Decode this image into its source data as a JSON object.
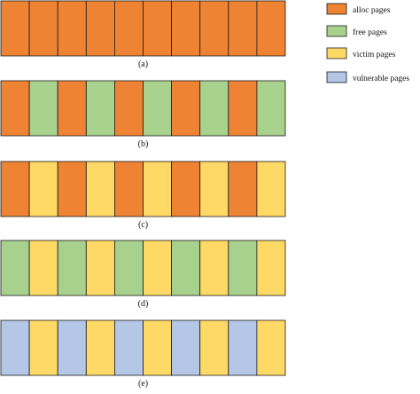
{
  "legend": [
    {
      "key": "alloc",
      "label": "alloc pages",
      "color": "#ee8433"
    },
    {
      "key": "free",
      "label": "free pages",
      "color": "#a9d18e"
    },
    {
      "key": "victim",
      "label": "victim pages",
      "color": "#ffd966"
    },
    {
      "key": "vulnerable",
      "label": "vulnerable pages",
      "color": "#b4c7e7"
    }
  ],
  "rows": [
    {
      "label": "(a)",
      "cells": [
        "alloc",
        "alloc",
        "alloc",
        "alloc",
        "alloc",
        "alloc",
        "alloc",
        "alloc",
        "alloc",
        "alloc"
      ]
    },
    {
      "label": "(b)",
      "cells": [
        "alloc",
        "free",
        "alloc",
        "free",
        "alloc",
        "free",
        "alloc",
        "free",
        "alloc",
        "free"
      ]
    },
    {
      "label": "(c)",
      "cells": [
        "alloc",
        "victim",
        "alloc",
        "victim",
        "alloc",
        "victim",
        "alloc",
        "victim",
        "alloc",
        "victim"
      ]
    },
    {
      "label": "(d)",
      "cells": [
        "free",
        "victim",
        "free",
        "victim",
        "free",
        "victim",
        "free",
        "victim",
        "free",
        "victim"
      ]
    },
    {
      "label": "(e)",
      "cells": [
        "vulnerable",
        "victim",
        "vulnerable",
        "victim",
        "vulnerable",
        "victim",
        "vulnerable",
        "victim",
        "vulnerable",
        "victim"
      ]
    }
  ]
}
